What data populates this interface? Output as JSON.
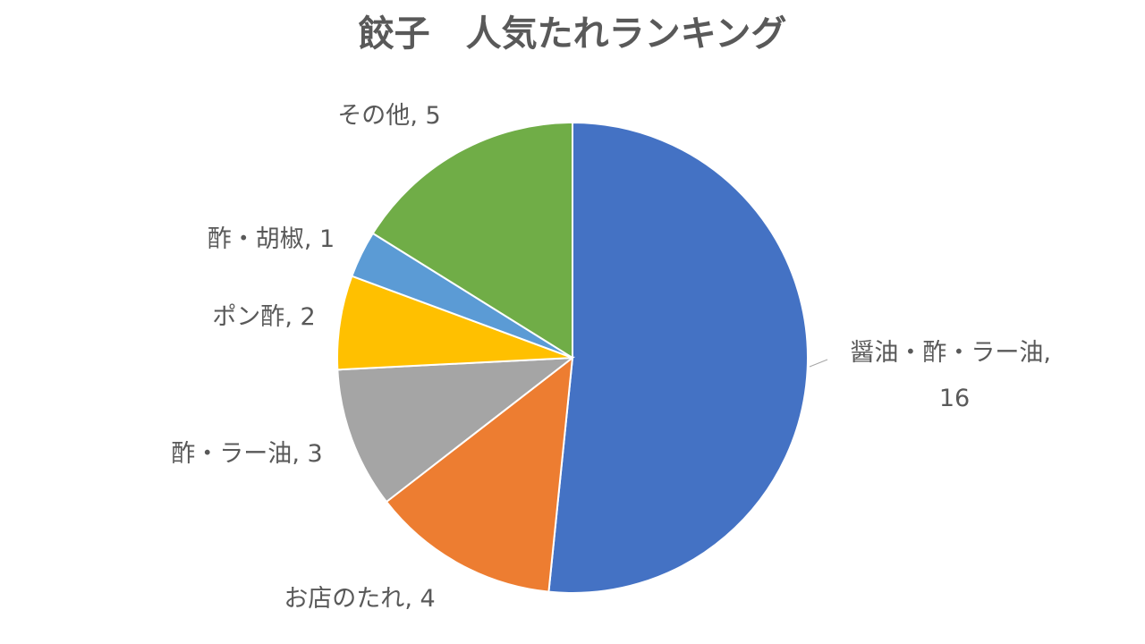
{
  "chart_data": {
    "type": "pie",
    "title": "餃子　人気たれランキング",
    "categories": [
      "醤油・酢・ラー油",
      "お店のたれ",
      "酢・ラー油",
      "ポン酢",
      "酢・胡椒",
      "その他"
    ],
    "values": [
      16,
      4,
      3,
      2,
      1,
      5
    ],
    "colors": [
      "#4472c4",
      "#ed7d31",
      "#a5a5a5",
      "#ffc000",
      "#5b9bd5",
      "#70ad47"
    ],
    "label_separator": ", "
  }
}
